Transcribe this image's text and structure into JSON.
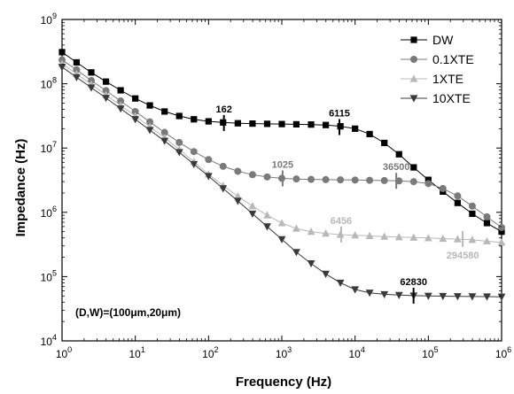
{
  "chart_data": {
    "type": "line",
    "xlabel": "Frequency (Hz)",
    "ylabel": "Impedance (Hz)",
    "xscale": "log",
    "yscale": "log",
    "xlim": [
      1,
      1000000
    ],
    "ylim": [
      10000,
      1000000000
    ],
    "x_ticks": [
      {
        "value": 1,
        "base": "10",
        "exp": "0"
      },
      {
        "value": 10,
        "base": "10",
        "exp": "1"
      },
      {
        "value": 100,
        "base": "10",
        "exp": "2"
      },
      {
        "value": 1000,
        "base": "10",
        "exp": "3"
      },
      {
        "value": 10000,
        "base": "10",
        "exp": "4"
      },
      {
        "value": 100000,
        "base": "10",
        "exp": "5"
      },
      {
        "value": 1000000,
        "base": "10",
        "exp": "6"
      }
    ],
    "y_ticks": [
      {
        "value": 10000,
        "base": "10",
        "exp": "4"
      },
      {
        "value": 100000,
        "base": "10",
        "exp": "5"
      },
      {
        "value": 1000000,
        "base": "10",
        "exp": "6"
      },
      {
        "value": 10000000,
        "base": "10",
        "exp": "7"
      },
      {
        "value": 100000000,
        "base": "10",
        "exp": "8"
      },
      {
        "value": 1000000000,
        "base": "10",
        "exp": "9"
      }
    ],
    "legend_position": "top-right",
    "annotation_text": "(D,W)=(100μm,20μm)",
    "x": [
      1,
      1.58,
      2.51,
      3.98,
      6.31,
      10,
      15.8,
      25.1,
      39.8,
      63.1,
      100,
      158,
      251,
      398,
      631,
      1000,
      1580,
      2510,
      3980,
      6310,
      10000,
      15800,
      25100,
      39800,
      63100,
      100000,
      158000,
      251000,
      398000,
      631000,
      1000000
    ],
    "series": [
      {
        "name": "DW",
        "marker": "square",
        "color": "#000000",
        "values": [
          310000000,
          215000000,
          150000000,
          108000000,
          79000000,
          59000000,
          46000000,
          37000000,
          31500000,
          28000000,
          26000000,
          25000000,
          24300000,
          24000000,
          23800000,
          23600000,
          23400000,
          23200000,
          22800000,
          21800000,
          20000000,
          16500000,
          12000000,
          8000000,
          5000000,
          3200000,
          2100000,
          1400000,
          950000,
          680000,
          500000
        ]
      },
      {
        "name": "0.1XTE",
        "marker": "circle",
        "color": "#7a7a7a",
        "values": [
          235000000,
          165000000,
          112000000,
          78000000,
          54000000,
          37000000,
          25500000,
          17500000,
          12200000,
          8800000,
          6600000,
          5200000,
          4350000,
          3850000,
          3550000,
          3380000,
          3300000,
          3250000,
          3220000,
          3200000,
          3180000,
          3150000,
          3120000,
          3080000,
          3000000,
          2800000,
          2350000,
          1800000,
          1250000,
          850000,
          580000
        ]
      },
      {
        "name": "1XTE",
        "marker": "triangle-up",
        "color": "#b8b8b8",
        "values": [
          205000000,
          142000000,
          98000000,
          67000000,
          46000000,
          31500000,
          21500000,
          14500000,
          9500000,
          6100000,
          3900000,
          2600000,
          1780000,
          1250000,
          900000,
          680000,
          560000,
          500000,
          470000,
          450000,
          440000,
          430000,
          420000,
          412000,
          405000,
          398000,
          390000,
          382000,
          375000,
          355000,
          340000
        ]
      },
      {
        "name": "10XTE",
        "marker": "triangle-down",
        "color": "#3a3a3a",
        "values": [
          182000000,
          126000000,
          87000000,
          60000000,
          41000000,
          28000000,
          19000000,
          12900000,
          8600000,
          5600000,
          3650000,
          2350000,
          1500000,
          950000,
          600000,
          380000,
          240000,
          160000,
          110000,
          80000,
          63000,
          56000,
          53000,
          51500,
          50500,
          50000,
          49600,
          49300,
          49000,
          48800,
          48500
        ]
      }
    ],
    "markers": [
      {
        "label": "162",
        "x": 162,
        "y": 24500000,
        "series": "DW",
        "color": "#000000"
      },
      {
        "label": "6115",
        "x": 6115,
        "y": 21200000,
        "series": "DW",
        "color": "#000000"
      },
      {
        "label": "1025",
        "x": 1025,
        "y": 3370000,
        "series": "0.1XTE",
        "color": "#7a7a7a"
      },
      {
        "label": "36500",
        "x": 36500,
        "y": 3090000,
        "series": "0.1XTE",
        "color": "#7a7a7a"
      },
      {
        "label": "6456",
        "x": 6456,
        "y": 451000,
        "series": "1XTE",
        "color": "#b8b8b8"
      },
      {
        "label": "294580",
        "x": 294580,
        "y": 385000,
        "series": "1XTE",
        "color": "#b8b8b8"
      },
      {
        "label": "62830",
        "x": 62830,
        "y": 50500,
        "series": "10XTE",
        "color": "#000000"
      }
    ]
  }
}
